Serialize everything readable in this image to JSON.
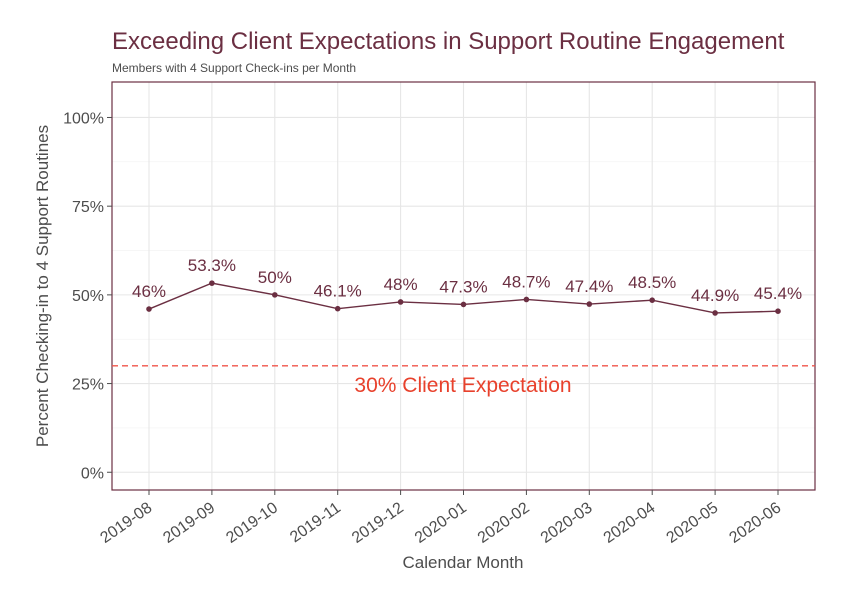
{
  "chart_data": {
    "type": "line",
    "title": "Exceeding Client Expectations in Support Routine Engagement",
    "subtitle": "Members with 4 Support Check-ins per Month",
    "xlabel": "Calendar Month",
    "ylabel": "Percent Checking-in to 4 Support Routines",
    "categories": [
      "2019-08",
      "2019-09",
      "2019-10",
      "2019-11",
      "2019-12",
      "2020-01",
      "2020-02",
      "2020-03",
      "2020-04",
      "2020-05",
      "2020-06"
    ],
    "values": [
      46,
      53.3,
      50,
      46.1,
      48,
      47.3,
      48.7,
      47.4,
      48.5,
      44.9,
      45.4
    ],
    "data_labels": [
      "46%",
      "53.3%",
      "50%",
      "46.1%",
      "48%",
      "47.3%",
      "48.7%",
      "47.4%",
      "48.5%",
      "44.9%",
      "45.4%"
    ],
    "ylim": [
      -5,
      110
    ],
    "y_ticks": [
      0,
      25,
      50,
      75,
      100
    ],
    "y_tick_labels": [
      "0%",
      "25%",
      "50%",
      "75%",
      "100%"
    ],
    "reference_line": {
      "value": 30,
      "label": "30% Client Expectation",
      "style": "dashed",
      "color": "#f0544a"
    },
    "line_color": "#6b2f42",
    "grid": true,
    "legend": "none"
  }
}
